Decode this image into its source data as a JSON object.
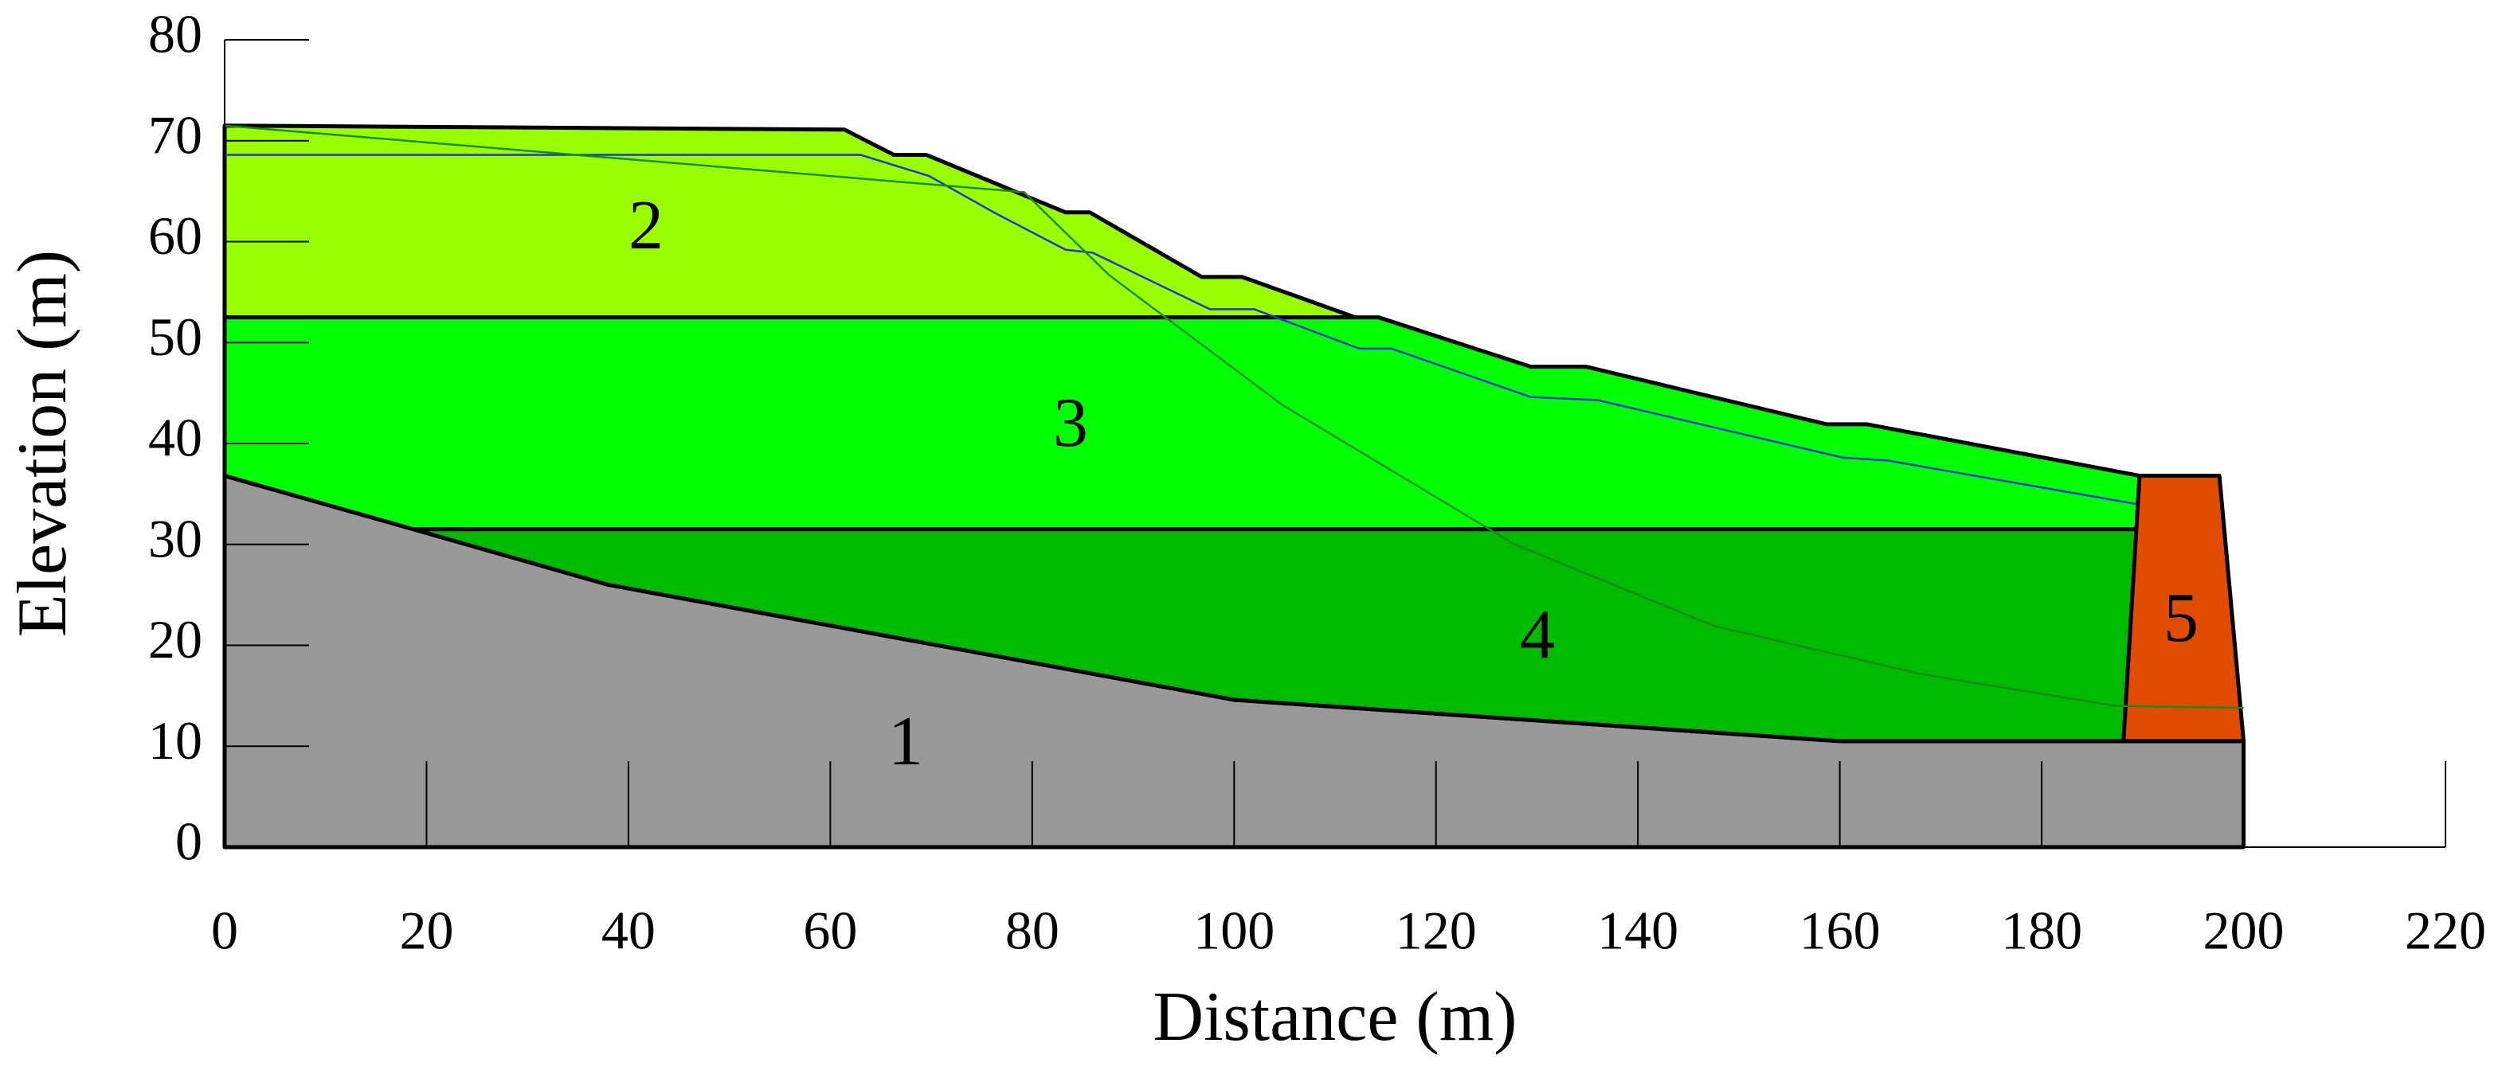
{
  "chart_data": {
    "type": "cross-section",
    "xlabel": "Distance (m)",
    "ylabel": "Elevation (m)",
    "xlim": [
      0,
      220
    ],
    "ylim": [
      0,
      80
    ],
    "xticks": [
      0,
      20,
      40,
      60,
      80,
      100,
      120,
      140,
      160,
      180,
      200,
      220
    ],
    "yticks": [
      0,
      10,
      20,
      30,
      40,
      50,
      60,
      70,
      80
    ],
    "series": [
      {
        "name": "1",
        "color": "#999999",
        "x": [
          0,
          0,
          18.7,
          38,
          100,
          160,
          200,
          200
        ],
        "values": [
          0,
          36.8,
          31.5,
          26,
          14.6,
          10.5,
          10.5,
          0
        ]
      },
      {
        "name": "2",
        "color": "#99ff00",
        "x": [
          0,
          0,
          61.4,
          66.3,
          69.5,
          83.3,
          85.7,
          96.8,
          100.8,
          112
        ],
        "values": [
          52.5,
          71.5,
          71.1,
          68.6,
          68.6,
          62.9,
          62.9,
          56.5,
          56.5,
          52.5
        ]
      },
      {
        "name": "3",
        "color": "#00ff00",
        "x": [
          0,
          112,
          114.3,
          129.4,
          134.9,
          158.7,
          162.7,
          189.7,
          189.4,
          18.7,
          0
        ],
        "values": [
          52.5,
          52.5,
          52.5,
          47.6,
          47.6,
          41.9,
          41.9,
          36.8,
          31.5,
          31.5,
          36.8
        ]
      },
      {
        "name": "4",
        "color": "#00bb00",
        "x": [
          18.7,
          189.4,
          188.1,
          160,
          100,
          38
        ],
        "values": [
          31.5,
          31.5,
          10.5,
          10.5,
          14.6,
          26
        ]
      },
      {
        "name": "5",
        "color": "#e04c00",
        "x": [
          189.7,
          197.6,
          200,
          188.1
        ],
        "values": [
          36.8,
          36.8,
          10.5,
          10.5
        ]
      }
    ],
    "lines": [
      {
        "color": "#2233dd",
        "x": [
          0,
          63,
          69.8,
          76.2,
          83.3,
          86,
          97.6,
          102,
          112.4,
          115.6,
          129.4,
          136,
          160.3,
          164.8,
          189.4
        ],
        "values": [
          68.6,
          68.6,
          66.5,
          62.9,
          59.2,
          58.9,
          53.3,
          53.3,
          49.4,
          49.4,
          44.6,
          44.3,
          38.6,
          38.3,
          34
        ]
      },
      {
        "color": "#1a8a1a",
        "x": [
          0,
          79.2,
          87.6,
          104.8,
          127.8,
          147.6,
          168.3,
          187.3,
          200
        ],
        "values": [
          71.5,
          64.9,
          56.7,
          43.8,
          30,
          21.9,
          17.1,
          14,
          13.8
        ]
      }
    ]
  }
}
